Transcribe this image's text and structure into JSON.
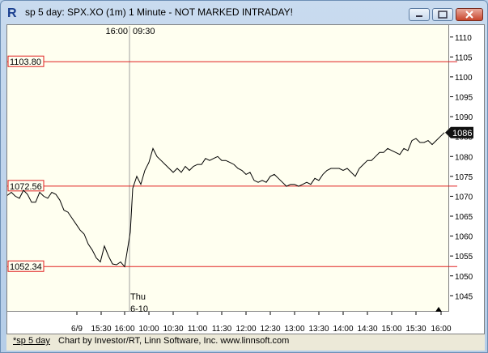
{
  "window": {
    "title": "sp 5 day: SPX.XO (1m) 1 Minute - NOT MARKED INTRADAY!",
    "minimize_icon": "minimize-icon",
    "maximize_icon": "maximize-icon",
    "close_icon": "close-icon"
  },
  "chart_data": {
    "type": "line",
    "series": [
      {
        "values": [
          [
            0,
            1070.2
          ],
          [
            5,
            1071
          ],
          [
            10,
            1070
          ],
          [
            15,
            1069.5
          ],
          [
            20,
            1071.5
          ],
          [
            25,
            1070.5
          ],
          [
            30,
            1068.5
          ],
          [
            35,
            1068.5
          ],
          [
            40,
            1071
          ],
          [
            45,
            1070
          ],
          [
            50,
            1069.5
          ],
          [
            55,
            1071
          ],
          [
            60,
            1070.5
          ],
          [
            65,
            1069
          ],
          [
            70,
            1066.5
          ],
          [
            75,
            1066
          ],
          [
            80,
            1064.5
          ],
          [
            85,
            1063
          ],
          [
            90,
            1061.5
          ],
          [
            95,
            1060.5
          ],
          [
            100,
            1058
          ],
          [
            105,
            1056.5
          ],
          [
            110,
            1054.5
          ],
          [
            115,
            1053.5
          ],
          [
            120,
            1057.5
          ],
          [
            125,
            1055
          ],
          [
            130,
            1053
          ],
          [
            135,
            1052.8
          ],
          [
            140,
            1053.5
          ],
          [
            145,
            1052.3
          ],
          [
            148,
            1056
          ],
          [
            152,
            1061
          ],
          [
            155,
            1072
          ],
          [
            160,
            1075
          ],
          [
            165,
            1073
          ],
          [
            170,
            1076.5
          ],
          [
            175,
            1078.5
          ],
          [
            180,
            1082
          ],
          [
            185,
            1080
          ],
          [
            190,
            1079
          ],
          [
            195,
            1078
          ],
          [
            200,
            1077
          ],
          [
            205,
            1076
          ],
          [
            210,
            1077
          ],
          [
            215,
            1076
          ],
          [
            220,
            1077.5
          ],
          [
            225,
            1076.5
          ],
          [
            230,
            1077.5
          ],
          [
            235,
            1078
          ],
          [
            240,
            1078
          ],
          [
            245,
            1079.5
          ],
          [
            250,
            1079
          ],
          [
            255,
            1079.5
          ],
          [
            260,
            1080
          ],
          [
            265,
            1079
          ],
          [
            270,
            1079
          ],
          [
            275,
            1078.5
          ],
          [
            280,
            1078
          ],
          [
            285,
            1077
          ],
          [
            290,
            1076.5
          ],
          [
            295,
            1075.5
          ],
          [
            300,
            1076
          ],
          [
            305,
            1074
          ],
          [
            310,
            1073.5
          ],
          [
            315,
            1074
          ],
          [
            320,
            1073.5
          ],
          [
            325,
            1075
          ],
          [
            330,
            1075.5
          ],
          [
            335,
            1074.5
          ],
          [
            340,
            1073.5
          ],
          [
            345,
            1072.5
          ],
          [
            350,
            1073
          ],
          [
            355,
            1073
          ],
          [
            360,
            1072.5
          ],
          [
            365,
            1073
          ],
          [
            370,
            1073.5
          ],
          [
            375,
            1073
          ],
          [
            380,
            1074.5
          ],
          [
            385,
            1074
          ],
          [
            390,
            1075.5
          ],
          [
            395,
            1076.5
          ],
          [
            400,
            1077
          ],
          [
            405,
            1077
          ],
          [
            410,
            1077
          ],
          [
            415,
            1076.5
          ],
          [
            420,
            1077
          ],
          [
            425,
            1076
          ],
          [
            430,
            1075
          ],
          [
            435,
            1077
          ],
          [
            440,
            1078
          ],
          [
            445,
            1079
          ],
          [
            450,
            1079
          ],
          [
            455,
            1080
          ],
          [
            460,
            1081
          ],
          [
            465,
            1081
          ],
          [
            470,
            1082
          ],
          [
            475,
            1081.5
          ],
          [
            480,
            1081
          ],
          [
            485,
            1080.5
          ],
          [
            490,
            1082
          ],
          [
            495,
            1081.5
          ],
          [
            500,
            1084
          ],
          [
            505,
            1084.5
          ],
          [
            510,
            1083.5
          ],
          [
            515,
            1083.5
          ],
          [
            520,
            1084
          ],
          [
            525,
            1083
          ],
          [
            530,
            1084
          ],
          [
            535,
            1085
          ],
          [
            540,
            1086
          ]
        ]
      }
    ],
    "last_price": "1086",
    "ylim": [
      1041,
      1113
    ],
    "y_ticks": [
      {
        "value": 1045,
        "label": "1045"
      },
      {
        "value": 1050,
        "label": "1050"
      },
      {
        "value": 1055,
        "label": "1055"
      },
      {
        "value": 1060,
        "label": "1060"
      },
      {
        "value": 1065,
        "label": "1065"
      },
      {
        "value": 1070,
        "label": "1070"
      },
      {
        "value": 1075,
        "label": "1075"
      },
      {
        "value": 1080,
        "label": "1080"
      },
      {
        "value": 1085,
        "label": "1085"
      },
      {
        "value": 1090,
        "label": "1090"
      },
      {
        "value": 1095,
        "label": "1095"
      },
      {
        "value": 1100,
        "label": "1100"
      },
      {
        "value": 1105,
        "label": "1105"
      },
      {
        "value": 1110,
        "label": "1110"
      }
    ],
    "x_ticks": [
      {
        "t": 86,
        "label": "6/9"
      },
      {
        "t": 116,
        "label": "15:30"
      },
      {
        "t": 145,
        "label": "16:00"
      },
      {
        "t": 175,
        "label": "10:00"
      },
      {
        "t": 205,
        "label": "10:30"
      },
      {
        "t": 235,
        "label": "11:00"
      },
      {
        "t": 265,
        "label": "11:30"
      },
      {
        "t": 295,
        "label": "12:00"
      },
      {
        "t": 325,
        "label": "12:30"
      },
      {
        "t": 355,
        "label": "13:00"
      },
      {
        "t": 385,
        "label": "13:30"
      },
      {
        "t": 415,
        "label": "14:00"
      },
      {
        "t": 445,
        "label": "14:30"
      },
      {
        "t": 475,
        "label": "15:00"
      },
      {
        "t": 505,
        "label": "15:30"
      },
      {
        "t": 536,
        "label": "16:00"
      }
    ],
    "horizontal_lines": [
      {
        "value": 1103.8,
        "label": "1103.80"
      },
      {
        "value": 1072.56,
        "label": "1072.56"
      },
      {
        "value": 1052.34,
        "label": "1052.34"
      }
    ],
    "session_divider": {
      "t": 145,
      "label_left": "16:00",
      "label_right": "09:30",
      "day_label": "Thu",
      "date_label": "6-10"
    }
  },
  "status": {
    "tab_label": "*sp 5 day",
    "credit": "Chart by Investor/RT, Linn Software, Inc. www.linnsoft.com"
  }
}
